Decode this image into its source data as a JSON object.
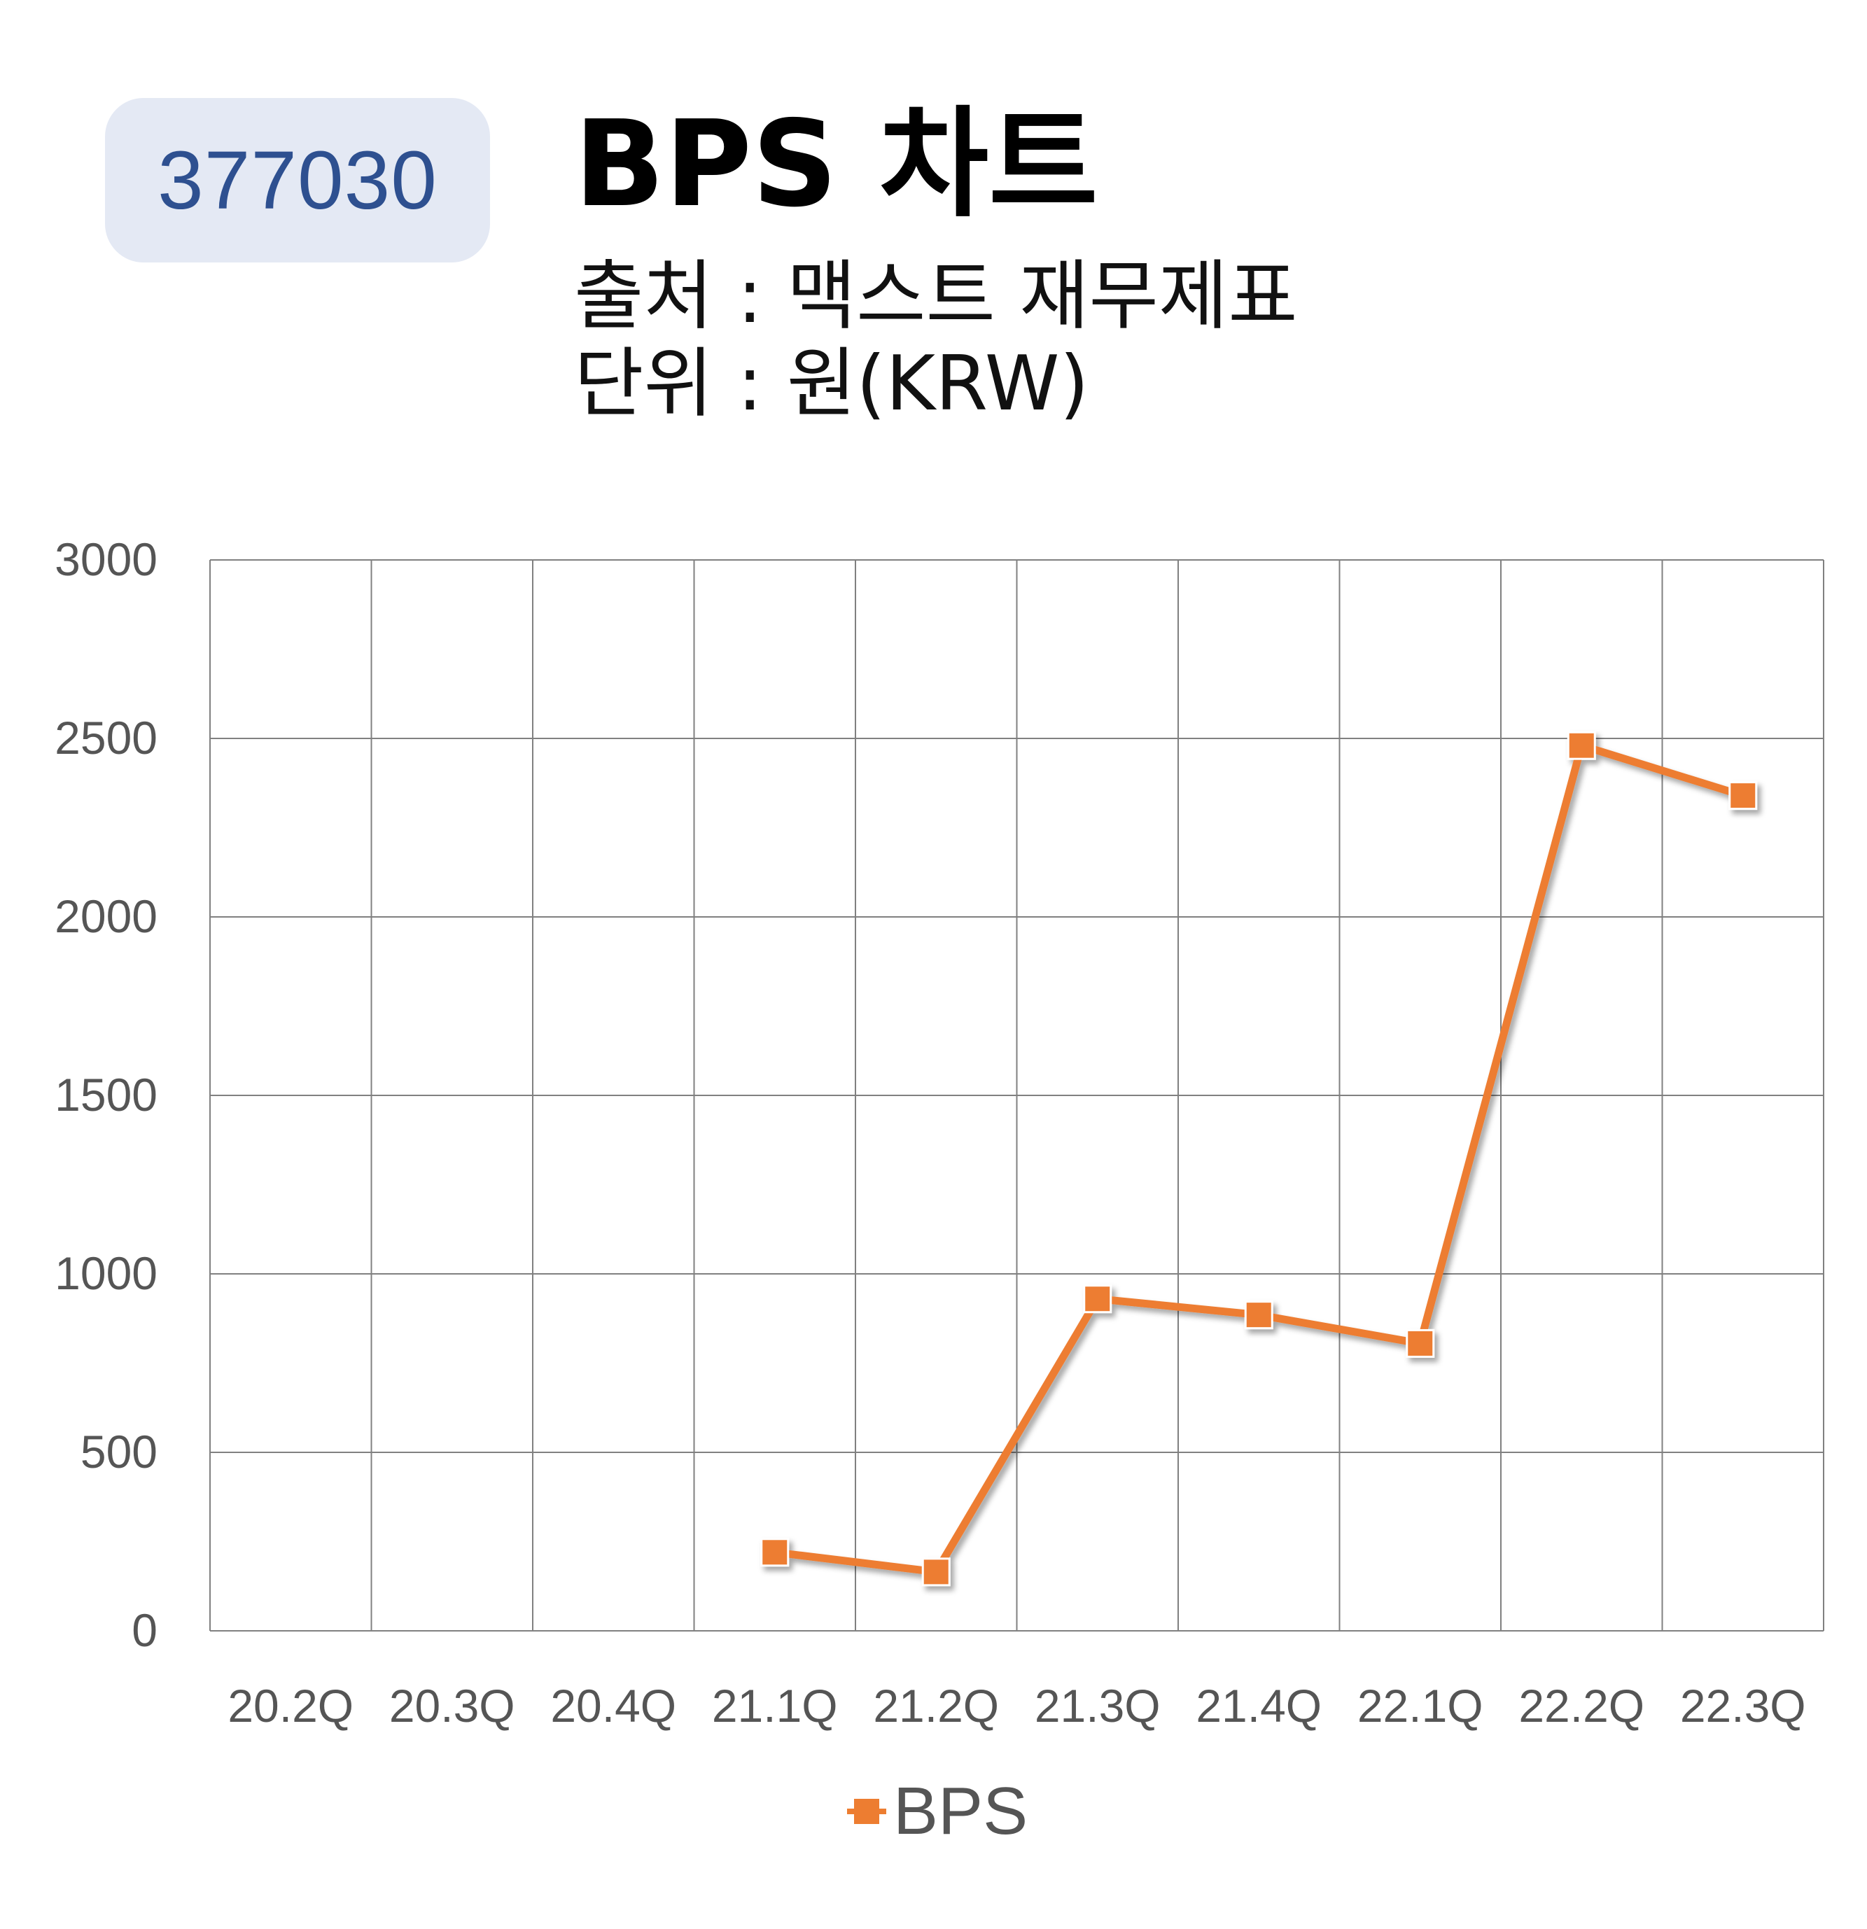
{
  "badge": "377030",
  "header": {
    "title": "BPS 차트",
    "source": "출처 : 맥스트 재무제표",
    "unit": "단위 : 원(KRW)"
  },
  "colors": {
    "series": "#ed7d31",
    "badge_bg": "#e4e9f4",
    "badge_text": "#2e5090",
    "grid": "#808080"
  },
  "chart_data": {
    "type": "line",
    "categories": [
      "20.2Q",
      "20.3Q",
      "20.4Q",
      "21.1Q",
      "21.2Q",
      "21.3Q",
      "21.4Q",
      "22.1Q",
      "22.2Q",
      "22.3Q"
    ],
    "series": [
      {
        "name": "BPS",
        "values": [
          null,
          null,
          null,
          220,
          165,
          930,
          885,
          805,
          2480,
          2340
        ],
        "marker": "square"
      }
    ],
    "ylim": [
      0,
      3000
    ],
    "yticks": [
      0,
      500,
      1000,
      1500,
      2000,
      2500,
      3000
    ],
    "grid": true,
    "legend": "bottom"
  }
}
